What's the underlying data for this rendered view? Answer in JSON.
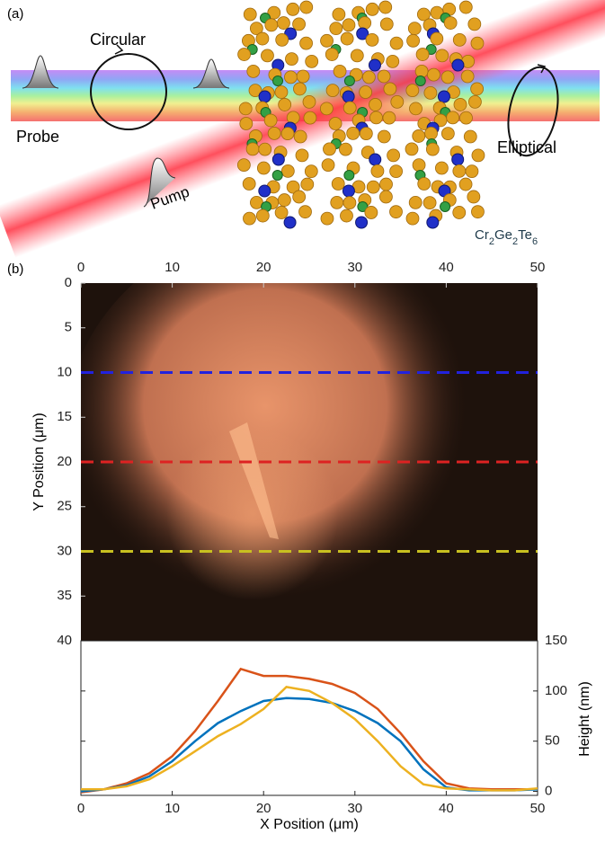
{
  "panel_a": {
    "label": "(a)",
    "circular": "Circular",
    "probe": "Probe",
    "pump": "Pump",
    "elliptical": "Elliptical",
    "material": [
      {
        "text": "Cr",
        "sub": "2"
      },
      {
        "text": "Ge",
        "sub": "2"
      },
      {
        "text": "Te",
        "sub": "6"
      }
    ]
  },
  "panel_b": {
    "label": "(b)"
  },
  "chart_data": [
    {
      "type": "heatmap",
      "ylabel": "Y Position (μm)",
      "xlim": [
        0,
        50
      ],
      "xticks": [
        0,
        10,
        20,
        30,
        40,
        50
      ],
      "ylim": [
        0,
        40
      ],
      "yticks": [
        0,
        5,
        10,
        15,
        20,
        25,
        30,
        35,
        40
      ],
      "cut_lines": [
        {
          "y": 10,
          "color": "#2222dd"
        },
        {
          "y": 20,
          "color": "#dd2222"
        },
        {
          "y": 30,
          "color": "#c8c020"
        }
      ]
    },
    {
      "type": "line",
      "xlabel": "X Position (μm)",
      "y2label": "Height (nm)",
      "xlim": [
        0,
        50
      ],
      "xticks": [
        0,
        10,
        20,
        30,
        40,
        50
      ],
      "y2lim": [
        -4,
        150
      ],
      "y2ticks": [
        0,
        50,
        100,
        150
      ],
      "x": [
        0,
        2.5,
        5,
        7.5,
        10,
        12.5,
        15,
        17.5,
        20,
        22.5,
        25,
        27.5,
        30,
        32.5,
        35,
        37.5,
        40,
        42.5,
        45,
        47.5,
        50
      ],
      "series": [
        {
          "color": "#d95319",
          "axis": "y2",
          "values": [
            -1,
            2,
            8,
            18,
            35,
            60,
            90,
            122,
            115,
            115,
            112,
            107,
            98,
            82,
            58,
            30,
            8,
            3,
            2,
            2,
            2
          ]
        },
        {
          "color": "#0072bd",
          "axis": "y2",
          "values": [
            0,
            2,
            6,
            15,
            30,
            50,
            68,
            80,
            90,
            93,
            92,
            88,
            80,
            68,
            50,
            22,
            4,
            1,
            1,
            1,
            2
          ]
        },
        {
          "color": "#edb120",
          "axis": "y2",
          "values": [
            2,
            2,
            5,
            12,
            25,
            40,
            55,
            67,
            82,
            104,
            100,
            88,
            72,
            50,
            25,
            7,
            3,
            2,
            1,
            1,
            3
          ]
        }
      ]
    }
  ]
}
